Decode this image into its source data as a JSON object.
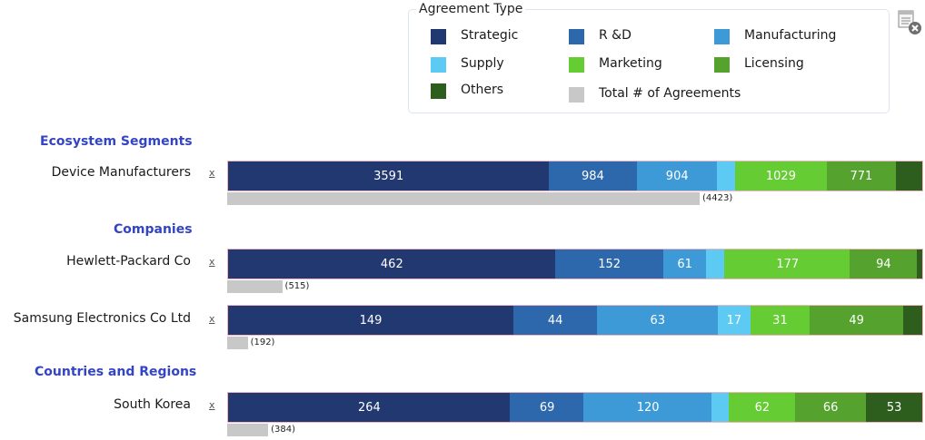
{
  "legend": {
    "title": "Agreement Type",
    "items": [
      {
        "label": "Strategic",
        "color": "#223870"
      },
      {
        "label": "R &D",
        "color": "#2e68ac"
      },
      {
        "label": "Manufacturing",
        "color": "#3d9ad6"
      },
      {
        "label": "Supply",
        "color": "#5ccaf2"
      },
      {
        "label": "Marketing",
        "color": "#66cc33"
      },
      {
        "label": "Licensing",
        "color": "#55a32e"
      },
      {
        "label": "Others",
        "color": "#2d5e1e"
      },
      {
        "label": "Total # of Agreements",
        "color": "#c8c8c8"
      }
    ]
  },
  "toolbar": {
    "icon": "remove-chart-icon"
  },
  "remove_symbol": "x",
  "chart_data": {
    "type": "bar",
    "orientation": "horizontal",
    "stacked": true,
    "normalized_to_100_percent": true,
    "series": [
      "Strategic",
      "R &D",
      "Manufacturing",
      "Supply",
      "Marketing",
      "Licensing",
      "Others"
    ],
    "sections": [
      {
        "title": "Ecosystem Segments",
        "rows": [
          {
            "label": "Device Manufacturers",
            "segments": [
              {
                "series": "Strategic",
                "value": 3591,
                "label": "3591"
              },
              {
                "series": "R &D",
                "value": 984,
                "label": "984"
              },
              {
                "series": "Manufacturing",
                "value": 904,
                "label": "904"
              },
              {
                "series": "Supply",
                "value": 196,
                "label": ""
              },
              {
                "series": "Marketing",
                "value": 1029,
                "label": "1029"
              },
              {
                "series": "Licensing",
                "value": 771,
                "label": "771"
              },
              {
                "series": "Others",
                "value": 300,
                "label": ""
              }
            ],
            "total": 4423,
            "total_label": "(4423)"
          }
        ]
      },
      {
        "title": "Companies",
        "rows": [
          {
            "label": "Hewlett-Packard Co",
            "segments": [
              {
                "series": "Strategic",
                "value": 462,
                "label": "462"
              },
              {
                "series": "R &D",
                "value": 152,
                "label": "152"
              },
              {
                "series": "Manufacturing",
                "value": 61,
                "label": "61"
              },
              {
                "series": "Supply",
                "value": 26,
                "label": ""
              },
              {
                "series": "Marketing",
                "value": 177,
                "label": "177"
              },
              {
                "series": "Licensing",
                "value": 94,
                "label": "94"
              },
              {
                "series": "Others",
                "value": 8,
                "label": ""
              }
            ],
            "total": 515,
            "total_label": "(515)"
          },
          {
            "label": "Samsung Electronics Co Ltd",
            "segments": [
              {
                "series": "Strategic",
                "value": 149,
                "label": "149"
              },
              {
                "series": "R &D",
                "value": 44,
                "label": "44"
              },
              {
                "series": "Manufacturing",
                "value": 63,
                "label": "63"
              },
              {
                "series": "Supply",
                "value": 17,
                "label": "17"
              },
              {
                "series": "Marketing",
                "value": 31,
                "label": "31"
              },
              {
                "series": "Licensing",
                "value": 49,
                "label": "49"
              },
              {
                "series": "Others",
                "value": 10,
                "label": ""
              }
            ],
            "total": 192,
            "total_label": "(192)"
          }
        ]
      },
      {
        "title": "Countries and Regions",
        "rows": [
          {
            "label": "South Korea",
            "segments": [
              {
                "series": "Strategic",
                "value": 264,
                "label": "264"
              },
              {
                "series": "R &D",
                "value": 69,
                "label": "69"
              },
              {
                "series": "Manufacturing",
                "value": 120,
                "label": "120"
              },
              {
                "series": "Supply",
                "value": 16,
                "label": ""
              },
              {
                "series": "Marketing",
                "value": 62,
                "label": "62"
              },
              {
                "series": "Licensing",
                "value": 66,
                "label": "66"
              },
              {
                "series": "Others",
                "value": 53,
                "label": "53"
              }
            ],
            "total": 384,
            "total_label": "(384)"
          }
        ]
      }
    ]
  }
}
